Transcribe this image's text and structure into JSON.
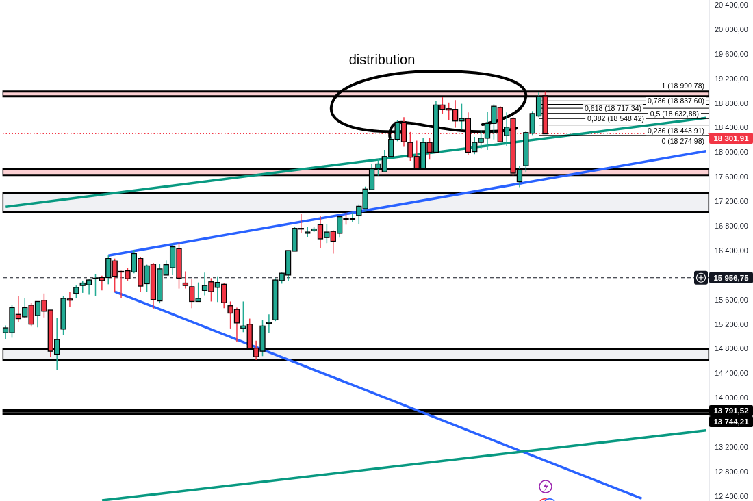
{
  "chart_data": {
    "type": "candlestick",
    "categories": [
      null,
      null,
      null,
      null,
      null,
      null,
      null,
      null,
      null,
      null,
      null,
      null,
      null,
      null,
      null,
      null,
      null,
      null,
      null,
      null,
      null,
      null,
      null,
      null,
      null,
      null,
      null,
      null,
      null,
      null,
      null,
      null,
      null,
      null,
      null,
      null,
      null,
      null,
      null,
      null,
      null,
      null,
      null,
      null,
      null,
      null,
      null,
      null,
      null,
      null,
      null,
      null,
      null,
      null,
      null,
      null,
      null,
      null,
      null,
      null,
      null,
      null,
      null,
      null,
      null,
      null,
      null,
      null,
      null,
      null,
      null,
      null,
      null,
      null,
      null,
      null,
      null,
      null,
      null,
      null,
      null,
      null,
      null,
      null,
      null,
      null,
      null,
      null,
      null,
      null,
      null,
      null,
      null,
      null,
      null,
      null,
      null,
      null,
      null,
      null,
      null,
      null,
      null,
      null,
      null,
      null,
      null,
      null,
      null,
      null
    ],
    "ohlc": [
      [
        15060,
        15180,
        14960,
        15140
      ],
      [
        15060,
        15520,
        14980,
        15470
      ],
      [
        15360,
        15660,
        15240,
        15290
      ],
      [
        15320,
        15630,
        15300,
        15470
      ],
      [
        15510,
        15550,
        15160,
        15200
      ],
      [
        15340,
        15570,
        15150,
        15570
      ],
      [
        15590,
        15700,
        15310,
        15410
      ],
      [
        15430,
        15430,
        14660,
        14760
      ],
      [
        14710,
        15300,
        14450,
        14950
      ],
      [
        15120,
        15660,
        15020,
        15620
      ],
      [
        15610,
        15730,
        15480,
        15590
      ],
      [
        15700,
        15830,
        15630,
        15800
      ],
      [
        15830,
        15910,
        15710,
        15870
      ],
      [
        15840,
        15940,
        15680,
        15920
      ],
      [
        15950,
        16010,
        15660,
        15950
      ],
      [
        15960,
        15990,
        15750,
        15910
      ],
      [
        15960,
        16320,
        15850,
        16270
      ],
      [
        16230,
        16270,
        15730,
        15980
      ],
      [
        16060,
        16070,
        15630,
        16050
      ],
      [
        16070,
        16120,
        15910,
        15940
      ],
      [
        16050,
        16410,
        16030,
        16350
      ],
      [
        16270,
        16300,
        15730,
        15820
      ],
      [
        15860,
        16170,
        15720,
        16150
      ],
      [
        16180,
        16200,
        15450,
        15600
      ],
      [
        15580,
        16180,
        15540,
        16100
      ],
      [
        16000,
        16240,
        16000,
        16170
      ],
      [
        16120,
        16500,
        16000,
        16460
      ],
      [
        16430,
        16530,
        15780,
        15950
      ],
      [
        15870,
        16060,
        15780,
        15830
      ],
      [
        15810,
        15930,
        15460,
        15570
      ],
      [
        15570,
        15880,
        15570,
        15620
      ],
      [
        15750,
        16040,
        15670,
        15830
      ],
      [
        15890,
        15950,
        15570,
        15730
      ],
      [
        15800,
        15980,
        15560,
        15880
      ],
      [
        15850,
        15870,
        15460,
        15550
      ],
      [
        15500,
        15570,
        15130,
        15380
      ],
      [
        15440,
        15470,
        14910,
        15220
      ],
      [
        15130,
        15570,
        15070,
        15170
      ],
      [
        15200,
        15290,
        14800,
        14800
      ],
      [
        14810,
        14930,
        14620,
        14670
      ],
      [
        14760,
        15270,
        14680,
        15170
      ],
      [
        15210,
        15360,
        15060,
        15230
      ],
      [
        15270,
        15950,
        15250,
        15920
      ],
      [
        15910,
        16040,
        15860,
        16030
      ],
      [
        16000,
        16400,
        15910,
        16400
      ],
      [
        16390,
        16790,
        16390,
        16760
      ],
      [
        16760,
        17000,
        16680,
        16750
      ],
      [
        16680,
        16790,
        16620,
        16700
      ],
      [
        16720,
        16780,
        16700,
        16750
      ],
      [
        16820,
        16960,
        16440,
        16590
      ],
      [
        16610,
        16830,
        16520,
        16700
      ],
      [
        16710,
        16730,
        16350,
        16550
      ],
      [
        16680,
        16970,
        16610,
        16950
      ],
      [
        16920,
        17010,
        16820,
        16910
      ],
      [
        16910,
        17020,
        16860,
        16920
      ],
      [
        16970,
        17150,
        16830,
        17120
      ],
      [
        17080,
        17440,
        17040,
        17400
      ],
      [
        17390,
        17810,
        17390,
        17730
      ],
      [
        17730,
        17890,
        17620,
        17810
      ],
      [
        17680,
        18040,
        17670,
        17930
      ],
      [
        17930,
        18230,
        17930,
        18210
      ],
      [
        18210,
        18520,
        18180,
        18490
      ],
      [
        18490,
        18570,
        18090,
        18170
      ],
      [
        18160,
        18330,
        17860,
        17920
      ],
      [
        17930,
        18190,
        17730,
        17730
      ],
      [
        17740,
        18230,
        17740,
        18160
      ],
      [
        18160,
        18230,
        17880,
        18000
      ],
      [
        18000,
        18840,
        18000,
        18770
      ],
      [
        18770,
        18900,
        18630,
        18700
      ],
      [
        18710,
        18810,
        18520,
        18690
      ],
      [
        18700,
        18850,
        18400,
        18510
      ],
      [
        18510,
        18790,
        18370,
        18550
      ],
      [
        18550,
        18650,
        17950,
        18000
      ],
      [
        18010,
        18250,
        17970,
        18160
      ],
      [
        18160,
        18360,
        18050,
        18230
      ],
      [
        18230,
        18660,
        18040,
        18470
      ],
      [
        18470,
        18780,
        18210,
        18750
      ],
      [
        18730,
        18750,
        18170,
        18170
      ],
      [
        18270,
        18650,
        18100,
        18410
      ],
      [
        18550,
        18570,
        17620,
        17660
      ],
      [
        17520,
        17780,
        17430,
        17720
      ],
      [
        17780,
        18340,
        17670,
        18320
      ],
      [
        18310,
        18670,
        18280,
        18630
      ],
      [
        18590,
        18980,
        18570,
        18910
      ],
      [
        18920,
        18990,
        18300,
        18300
      ],
      null,
      null,
      null,
      null,
      null,
      null,
      null,
      null,
      null,
      null,
      null,
      null,
      null,
      null,
      null,
      null,
      null,
      null,
      null,
      null,
      null,
      null,
      null,
      null,
      null
    ],
    "colors": [
      "#22ab94",
      "#22ab94",
      "#f23645",
      "#22ab94",
      "#f23645",
      "#22ab94",
      "#f23645",
      "#f23645",
      "#22ab94",
      "#22ab94",
      "#f23645",
      "#22ab94",
      "#22ab94",
      "#22ab94",
      "#22ab94",
      "#f23645",
      "#22ab94",
      "#f23645",
      "#f23645",
      "#f23645",
      "#22ab94",
      "#f23645",
      "#22ab94",
      "#f23645",
      "#22ab94",
      "#22ab94",
      "#22ab94",
      "#f23645",
      "#f23645",
      "#f23645",
      "#22ab94",
      "#22ab94",
      "#f23645",
      "#22ab94",
      "#f23645",
      "#f23645",
      "#f23645",
      "#22ab94",
      "#f23645",
      "#f23645",
      "#22ab94",
      "#22ab94",
      "#22ab94",
      "#22ab94",
      "#22ab94",
      "#22ab94",
      "#f23645",
      "#22ab94",
      "#22ab94",
      "#f23645",
      "#22ab94",
      "#f23645",
      "#22ab94",
      "#f23645",
      "#22ab94",
      "#22ab94",
      "#22ab94",
      "#22ab94",
      "#22ab94",
      "#22ab94",
      "#22ab94",
      "#22ab94",
      "#f23645",
      "#f23645",
      "#f23645",
      "#22ab94",
      "#f23645",
      "#22ab94",
      "#f23645",
      "#f23645",
      "#f23645",
      "#22ab94",
      "#f23645",
      "#22ab94",
      "#22ab94",
      "#22ab94",
      "#22ab94",
      "#f23645",
      "#22ab94",
      "#f23645",
      "#22ab94",
      "#22ab94",
      "#22ab94",
      "#22ab94",
      "#f23645",
      null,
      null,
      null,
      null,
      null,
      null,
      null,
      null,
      null,
      null,
      null,
      null,
      null,
      null,
      null,
      null,
      null,
      null,
      null,
      null,
      null,
      null,
      null,
      null,
      null
    ],
    "series": [
      {
        "type": "line",
        "color": "#089981",
        "values": [
          17110,
          null,
          null,
          null,
          null,
          null,
          null,
          null,
          null,
          null,
          null,
          null,
          null,
          null,
          null,
          null,
          null,
          null,
          null,
          null,
          null,
          null,
          null,
          null,
          null,
          null,
          null,
          null,
          null,
          null,
          null,
          null,
          null,
          null,
          null,
          null,
          null,
          null,
          null,
          null,
          null,
          null,
          null,
          null,
          null,
          null,
          null,
          null,
          null,
          null,
          null,
          null,
          null,
          null,
          null,
          null,
          null,
          null,
          null,
          null,
          null,
          null,
          null,
          null,
          null,
          null,
          null,
          null,
          null,
          null,
          null,
          null,
          null,
          null,
          null,
          null,
          null,
          null,
          null,
          null,
          null,
          null,
          null,
          null,
          null,
          null,
          null,
          null,
          null,
          null,
          null,
          null,
          null,
          null,
          null,
          null,
          null,
          null,
          null,
          null,
          null,
          null,
          null,
          null,
          null,
          null,
          null,
          null,
          null,
          18560
        ]
      },
      {
        "type": "line",
        "color": "#2962ff",
        "values": [
          null,
          null,
          null,
          null,
          null,
          null,
          null,
          null,
          null,
          null,
          null,
          null,
          null,
          null,
          null,
          null,
          16320,
          null,
          null,
          null,
          null,
          null,
          null,
          null,
          null,
          null,
          null,
          null,
          null,
          null,
          null,
          null,
          null,
          null,
          null,
          null,
          null,
          null,
          null,
          null,
          null,
          null,
          null,
          null,
          null,
          null,
          null,
          null,
          null,
          null,
          null,
          null,
          null,
          null,
          null,
          null,
          null,
          null,
          null,
          null,
          null,
          null,
          null,
          null,
          null,
          null,
          null,
          null,
          null,
          null,
          null,
          null,
          null,
          null,
          null,
          null,
          null,
          null,
          null,
          null,
          null,
          null,
          null,
          null,
          null,
          null,
          null,
          null,
          null,
          null,
          null,
          null,
          null,
          null,
          null,
          null,
          null,
          null,
          null,
          null,
          null,
          null,
          null,
          null,
          null,
          null,
          null,
          null,
          null,
          18020
        ]
      },
      {
        "type": "line",
        "color": "#2962ff",
        "values": [
          null,
          null,
          null,
          null,
          null,
          null,
          null,
          null,
          null,
          null,
          null,
          null,
          null,
          null,
          null,
          null,
          null,
          15730,
          null,
          null,
          null,
          null,
          null,
          null,
          null,
          null,
          null,
          null,
          null,
          null,
          null,
          null,
          null,
          null,
          null,
          null,
          null,
          null,
          null,
          null,
          null,
          null,
          null,
          null,
          null,
          null,
          null,
          null,
          null,
          null,
          null,
          null,
          null,
          null,
          null,
          null,
          null,
          null,
          null,
          null,
          null,
          null,
          null,
          null,
          null,
          null,
          null,
          null,
          null,
          null,
          null,
          null,
          null,
          null,
          null,
          null,
          null,
          null,
          null,
          null,
          null,
          null,
          null,
          null,
          null,
          null,
          null,
          null,
          null,
          null,
          null,
          null,
          null,
          null,
          null,
          null,
          null,
          null,
          null,
          12360,
          null,
          null,
          null,
          null,
          null,
          null,
          null,
          null,
          null,
          null
        ]
      },
      {
        "type": "line",
        "color": "#089981",
        "values": [
          null,
          null,
          null,
          null,
          null,
          null,
          null,
          null,
          null,
          null,
          null,
          null,
          null,
          null,
          null,
          12330,
          null,
          null,
          null,
          null,
          null,
          null,
          null,
          null,
          null,
          null,
          null,
          null,
          null,
          null,
          null,
          null,
          null,
          null,
          null,
          null,
          null,
          null,
          null,
          null,
          null,
          null,
          null,
          null,
          null,
          null,
          null,
          null,
          null,
          null,
          null,
          null,
          null,
          null,
          null,
          null,
          null,
          null,
          null,
          null,
          null,
          null,
          null,
          null,
          null,
          null,
          null,
          null,
          null,
          null,
          null,
          null,
          null,
          null,
          null,
          null,
          null,
          null,
          null,
          null,
          null,
          null,
          null,
          null,
          null,
          null,
          null,
          null,
          null,
          null,
          null,
          null,
          null,
          null,
          null,
          null,
          null,
          null,
          null,
          null,
          null,
          null,
          null,
          null,
          null,
          null,
          null,
          null,
          null,
          13470
        ]
      }
    ],
    "ylim": [
      12320,
      20480
    ],
    "yticks": [
      {
        "value": 12400,
        "label": "12 400,00"
      },
      {
        "value": 12800,
        "label": "12 800,00"
      },
      {
        "value": 13200,
        "label": "13 200,00"
      },
      {
        "value": 14000,
        "label": "14 000,00"
      },
      {
        "value": 14400,
        "label": "14 400,00"
      },
      {
        "value": 14800,
        "label": "14 800,00"
      },
      {
        "value": 15200,
        "label": "15 200,00"
      },
      {
        "value": 15600,
        "label": "15 600,00"
      },
      {
        "value": 16400,
        "label": "16 400,00"
      },
      {
        "value": 16800,
        "label": "16 800,00"
      },
      {
        "value": 17200,
        "label": "17 200,00"
      },
      {
        "value": 17600,
        "label": "17 600,00"
      },
      {
        "value": 18000,
        "label": "18 000,00"
      },
      {
        "value": 18400,
        "label": "18 400,00"
      },
      {
        "value": 18800,
        "label": "18 800,00"
      },
      {
        "value": 19200,
        "label": "19 200,00"
      },
      {
        "value": 19600,
        "label": "19 600,00"
      },
      {
        "value": 20000,
        "label": "20 000,00"
      },
      {
        "value": 20400,
        "label": "20 400,00"
      }
    ],
    "tick_labels": "y",
    "ref_lines": [
      {
        "axis": "y",
        "value": 18301.91,
        "label": "18 301,91",
        "color": "#f23645",
        "line_style": "dotted"
      },
      {
        "axis": "y",
        "value": 15956.75,
        "label": "15 956,75",
        "color": "#131722",
        "line_style": "dashed"
      },
      {
        "axis": "y",
        "value": 13791.52,
        "label": "13 791,52",
        "color": "#000000"
      },
      {
        "axis": "y",
        "value": 13744.21,
        "label": "13 744,21",
        "color": "#000000"
      },
      {
        "axis": "y",
        "value": 18990.78,
        "label": "1 (18 990,78)"
      },
      {
        "axis": "y",
        "value": 18837.6,
        "label": "0,786 (18 837,60)"
      },
      {
        "axis": "y",
        "value": 18780
      },
      {
        "axis": "y",
        "value": 18717.34,
        "label": "0,618 (18 717,34)"
      },
      {
        "axis": "y",
        "value": 18632.88,
        "label": "0,5 (18 632,88)"
      },
      {
        "axis": "y",
        "value": 18548.42,
        "label": "0,382 (18 548,42)"
      },
      {
        "axis": "y",
        "value": 18443.91,
        "label": "0,236 (18 443,91)"
      },
      {
        "axis": "y",
        "value": 18274.98,
        "label": "0 (18 274,98)"
      }
    ],
    "bands": [
      {
        "axis": "y",
        "from": 18910,
        "to": 18990,
        "color": "#fcd0d3"
      },
      {
        "axis": "y",
        "from": 17630,
        "to": 17730,
        "color": "#fcd0d3"
      },
      {
        "axis": "y",
        "from": 17030,
        "to": 17340,
        "color": "#f0f1f4"
      },
      {
        "axis": "y",
        "from": 14620,
        "to": 14800,
        "color": "#f0f1f4"
      }
    ],
    "annotations": [
      "distribution"
    ]
  }
}
